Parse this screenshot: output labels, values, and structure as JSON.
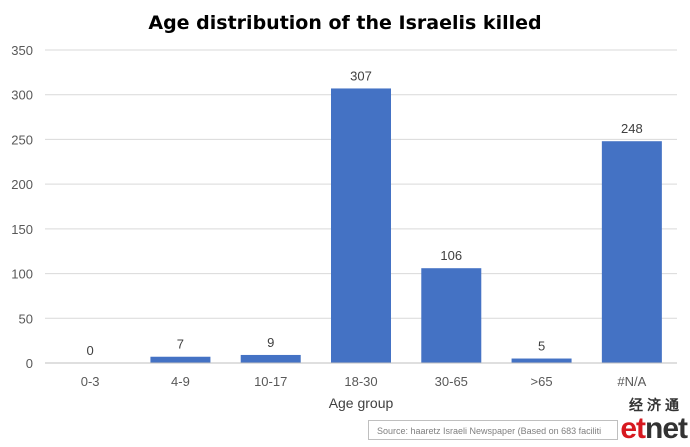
{
  "chart_data": {
    "type": "bar",
    "title": "Age distribution of the Israelis killed",
    "xlabel": "Age group",
    "ylabel": "",
    "categories": [
      "0-3",
      "4-9",
      "10-17",
      "18-30",
      "30-65",
      ">65",
      "#N/A"
    ],
    "values": [
      0,
      7,
      9,
      307,
      106,
      5,
      248
    ],
    "ylim": [
      0,
      350
    ],
    "yticks": [
      0,
      50,
      100,
      150,
      200,
      250,
      300,
      350
    ],
    "grid": true,
    "legend": "none",
    "bar_color": "#4472C4",
    "grid_color": "#d9d9d9"
  },
  "source": "Source: haaretz Israeli Newspaper (Based on 683 faciliti",
  "logo": {
    "cjk": "经济通",
    "word_accent": "et",
    "word_rest": "net"
  }
}
